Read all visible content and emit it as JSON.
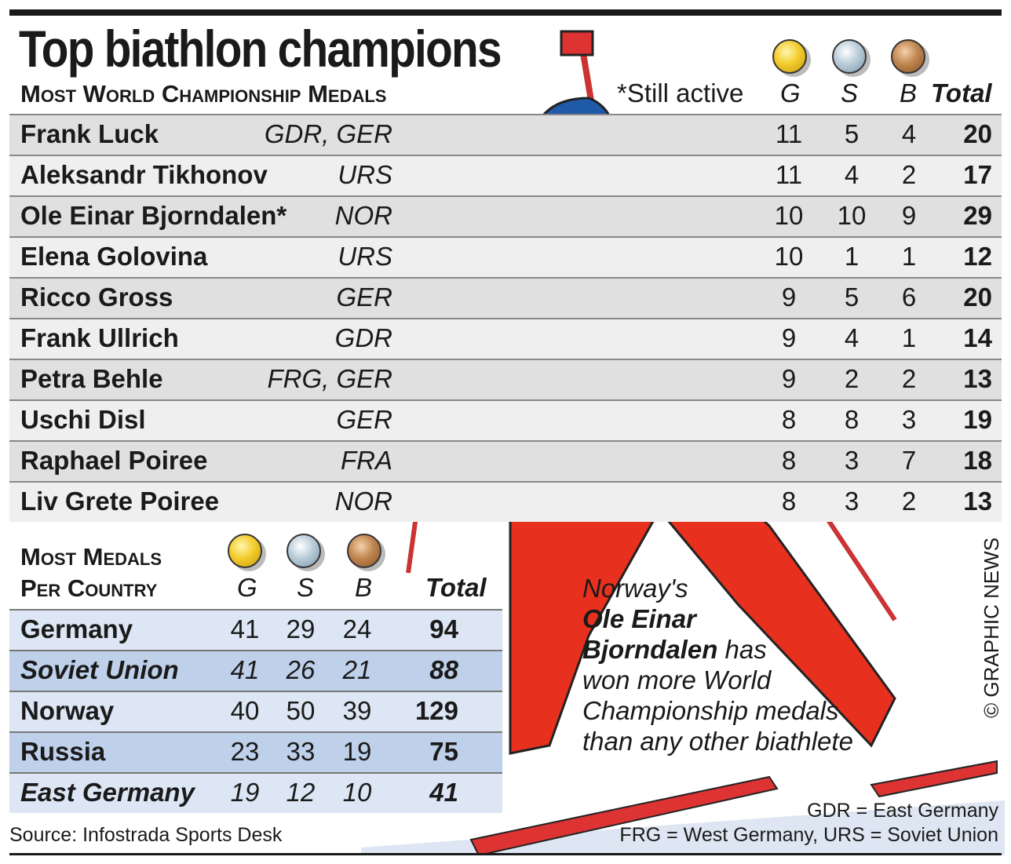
{
  "title": "Top biathlon champions",
  "individuals": {
    "heading": "Most World Championship Medals",
    "active_note": "*Still active",
    "headers": {
      "g": "G",
      "s": "S",
      "b": "B",
      "total": "Total"
    },
    "rows": [
      {
        "name": "Frank Luck",
        "country": "GDR, GER",
        "g": "11",
        "s": "5",
        "b": "4",
        "total": "20"
      },
      {
        "name": "Aleksandr Tikhonov",
        "country": "URS",
        "g": "11",
        "s": "4",
        "b": "2",
        "total": "17"
      },
      {
        "name": "Ole Einar Bjorndalen*",
        "country": "NOR",
        "g": "10",
        "s": "10",
        "b": "9",
        "total": "29"
      },
      {
        "name": "Elena Golovina",
        "country": "URS",
        "g": "10",
        "s": "1",
        "b": "1",
        "total": "12"
      },
      {
        "name": "Ricco Gross",
        "country": "GER",
        "g": "9",
        "s": "5",
        "b": "6",
        "total": "20"
      },
      {
        "name": "Frank Ullrich",
        "country": "GDR",
        "g": "9",
        "s": "4",
        "b": "1",
        "total": "14"
      },
      {
        "name": "Petra Behle",
        "country": "FRG, GER",
        "g": "9",
        "s": "2",
        "b": "2",
        "total": "13"
      },
      {
        "name": "Uschi Disl",
        "country": "GER",
        "g": "8",
        "s": "8",
        "b": "3",
        "total": "19"
      },
      {
        "name": "Raphael Poiree",
        "country": "FRA",
        "g": "8",
        "s": "3",
        "b": "7",
        "total": "18"
      },
      {
        "name": "Liv Grete Poiree",
        "country": "NOR",
        "g": "8",
        "s": "3",
        "b": "2",
        "total": "13"
      }
    ]
  },
  "countries": {
    "heading_line1": "Most Medals",
    "heading_line2": "Per Country",
    "headers": {
      "g": "G",
      "s": "S",
      "b": "B",
      "total": "Total"
    },
    "rows": [
      {
        "name": "Germany",
        "g": "41",
        "s": "29",
        "b": "24",
        "total": "94",
        "italic": false
      },
      {
        "name": "Soviet Union",
        "g": "41",
        "s": "26",
        "b": "21",
        "total": "88",
        "italic": true
      },
      {
        "name": "Norway",
        "g": "40",
        "s": "50",
        "b": "39",
        "total": "129",
        "italic": false
      },
      {
        "name": "Russia",
        "g": "23",
        "s": "33",
        "b": "19",
        "total": "75",
        "italic": false
      },
      {
        "name": "East Germany",
        "g": "19",
        "s": "12",
        "b": "10",
        "total": "41",
        "italic": true
      }
    ]
  },
  "note": {
    "l1": "Norway's",
    "l2": "Ole Einar",
    "l3": "Bjorndalen",
    "l3b": " has",
    "l4": "won more World",
    "l5": "Championship medals",
    "l6": "than any other biathlete"
  },
  "source": "Source: Infostrada Sports Desk",
  "legend": {
    "l1": "GDR = East Germany",
    "l2": "FRG = West Germany, URS = Soviet Union"
  },
  "credit": "© GRAPHIC NEWS",
  "colors": {
    "row_dark": "#e0e0e0",
    "row_light": "#efefef",
    "blue_light": "#dce6f4",
    "blue_dark": "#bed0ea",
    "suit": "#e8301e"
  },
  "chart_data": {
    "type": "table",
    "title": "Top biathlon champions"
  }
}
